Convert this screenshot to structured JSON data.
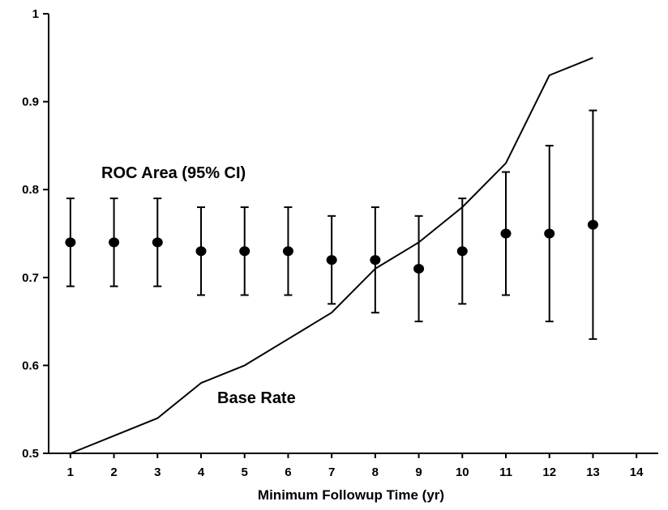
{
  "chart_data": {
    "type": "line",
    "title": "",
    "xlabel": "Minimum Followup Time (yr)",
    "ylabel": "",
    "xlim": [
      0.5,
      14.5
    ],
    "ylim": [
      0.5,
      1.0
    ],
    "x_ticks": [
      "1",
      "2",
      "3",
      "4",
      "5",
      "6",
      "7",
      "8",
      "9",
      "10",
      "11",
      "12",
      "13",
      "14"
    ],
    "y_ticks": [
      "0.5",
      "0.6",
      "0.7",
      "0.8",
      "0.9",
      "1"
    ],
    "grid": false,
    "annotations": {
      "roc_label": "ROC Area (95% CI)",
      "base_label": "Base Rate"
    },
    "roc_area": {
      "x": [
        1,
        2,
        3,
        4,
        5,
        6,
        7,
        8,
        9,
        10,
        11,
        12,
        13
      ],
      "values": [
        0.74,
        0.74,
        0.74,
        0.73,
        0.73,
        0.73,
        0.72,
        0.72,
        0.71,
        0.73,
        0.75,
        0.75,
        0.76
      ],
      "lower": [
        0.69,
        0.69,
        0.69,
        0.68,
        0.68,
        0.68,
        0.67,
        0.66,
        0.65,
        0.67,
        0.68,
        0.65,
        0.63
      ],
      "upper": [
        0.79,
        0.79,
        0.79,
        0.78,
        0.78,
        0.78,
        0.77,
        0.78,
        0.77,
        0.79,
        0.82,
        0.85,
        0.89
      ]
    },
    "base_rate": {
      "x": [
        1,
        2,
        3,
        4,
        5,
        6,
        7,
        8,
        9,
        10,
        11,
        12,
        13
      ],
      "values": [
        0.5,
        0.52,
        0.54,
        0.58,
        0.6,
        0.63,
        0.66,
        0.71,
        0.74,
        0.78,
        0.83,
        0.93,
        0.95
      ]
    }
  }
}
